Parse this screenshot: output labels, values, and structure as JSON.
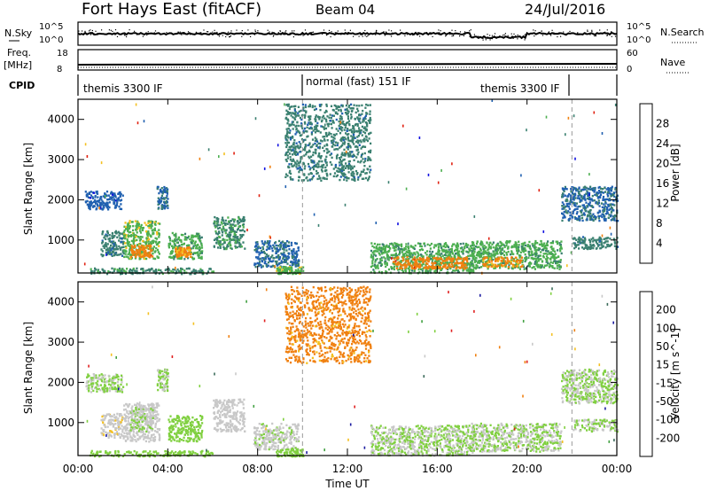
{
  "header": {
    "title": "Fort Hays East (fitACF)",
    "beam": "Beam 04",
    "date": "24/Jul/2016"
  },
  "noise_panel": {
    "left_label": "N.Sky",
    "right_label": "N.Search",
    "left_ticks": [
      "10^5",
      "10^0"
    ],
    "right_ticks": [
      "10^5",
      "10^0"
    ]
  },
  "freq_panel": {
    "left_label_top": "Freq.",
    "left_label_bottom": "[MHz]",
    "right_label": "Nave",
    "left_ticks": [
      "18",
      "8"
    ],
    "right_ticks": [
      "60",
      "0"
    ]
  },
  "cpid_panel": {
    "label": "CPID",
    "segments": [
      {
        "name": "themis 3300 IF",
        "start_hour": 0.0,
        "end_hour": 10.0
      },
      {
        "name": "normal (fast) 151 IF",
        "start_hour": 10.0,
        "end_hour": 22.0
      },
      {
        "name": "themis 3300 IF",
        "start_hour": 10.0,
        "end_hour": 22.0
      }
    ]
  },
  "x_axis": {
    "label": "Time UT",
    "ticks": [
      "00:00",
      "04:00",
      "08:00",
      "12:00",
      "16:00",
      "20:00",
      "00:00"
    ],
    "range_hours": [
      0,
      24
    ],
    "mode_boundaries_hours": [
      10.0,
      22.0
    ]
  },
  "chart_data": [
    {
      "type": "heatmap",
      "name": "power-panel",
      "ylabel": "Slant Range [km]",
      "yticks": [
        "1000",
        "2000",
        "3000",
        "4000"
      ],
      "ylim": [
        180,
        4500
      ],
      "colorbar": {
        "label": "Power [dB]",
        "ticks": [
          "4",
          "8",
          "12",
          "16",
          "20",
          "24",
          "28"
        ],
        "range": [
          0,
          30
        ],
        "colors": [
          "#1010e0",
          "#2060b0",
          "#3a8070",
          "#4caf50",
          "#f4c020",
          "#f08010",
          "#e02010"
        ]
      },
      "clusters": [
        {
          "t0": 0.3,
          "t1": 2.0,
          "r0": 1780,
          "r1": 2230,
          "value": 6
        },
        {
          "t0": 1.0,
          "t1": 2.0,
          "r0": 620,
          "r1": 1250,
          "value": 10
        },
        {
          "t0": 2.0,
          "t1": 3.6,
          "r0": 550,
          "r1": 1500,
          "value": 16
        },
        {
          "t0": 2.3,
          "t1": 3.3,
          "r0": 600,
          "r1": 900,
          "value": 24
        },
        {
          "t0": 3.5,
          "t1": 4.0,
          "r0": 1800,
          "r1": 2350,
          "value": 8
        },
        {
          "t0": 4.0,
          "t1": 5.5,
          "r0": 550,
          "r1": 1200,
          "value": 14
        },
        {
          "t0": 4.3,
          "t1": 5.0,
          "r0": 600,
          "r1": 850,
          "value": 22
        },
        {
          "t0": 6.0,
          "t1": 7.4,
          "r0": 800,
          "r1": 1600,
          "value": 12
        },
        {
          "t0": 0.5,
          "t1": 6.0,
          "r0": 180,
          "r1": 320,
          "value": 12
        },
        {
          "t0": 7.8,
          "t1": 9.8,
          "r0": 350,
          "r1": 1000,
          "value": 8
        },
        {
          "t0": 8.8,
          "t1": 10.0,
          "r0": 180,
          "r1": 360,
          "value": 16
        },
        {
          "t0": 9.2,
          "t1": 13.0,
          "r0": 2500,
          "r1": 4400,
          "value": 10
        },
        {
          "t0": 13.0,
          "t1": 17.6,
          "r0": 200,
          "r1": 950,
          "value": 14
        },
        {
          "t0": 14.0,
          "t1": 17.3,
          "r0": 300,
          "r1": 600,
          "value": 24
        },
        {
          "t0": 17.5,
          "t1": 21.5,
          "r0": 300,
          "r1": 1000,
          "value": 14
        },
        {
          "t0": 18.0,
          "t1": 19.8,
          "r0": 350,
          "r1": 600,
          "value": 22
        },
        {
          "t0": 21.5,
          "t1": 24.0,
          "r0": 1500,
          "r1": 2350,
          "value": 8
        },
        {
          "t0": 22.0,
          "t1": 24.0,
          "r0": 800,
          "r1": 1100,
          "value": 10
        }
      ]
    },
    {
      "type": "heatmap",
      "name": "velocity-panel",
      "ylabel": "Slant Range [km]",
      "yticks": [
        "1000",
        "2000",
        "3000",
        "4000"
      ],
      "ylim": [
        180,
        4500
      ],
      "colorbar": {
        "label": "Velocity [m s^-1]",
        "ticks": [
          "200",
          "100",
          "50",
          "15",
          "-15",
          "-50",
          "-100",
          "-200"
        ],
        "range": [
          -250,
          250
        ],
        "colors": [
          "#1a1aa0",
          "#3a6a5a",
          "#40a040",
          "#80d040",
          "#c8c8c8",
          "#f4c020",
          "#f08010",
          "#e02020"
        ]
      },
      "clusters": [
        {
          "t0": 0.3,
          "t1": 2.0,
          "r0": 1780,
          "r1": 2230,
          "value": 0
        },
        {
          "t0": 1.0,
          "t1": 2.0,
          "r0": 620,
          "r1": 1250,
          "value": 40
        },
        {
          "t0": 2.0,
          "t1": 3.6,
          "r0": 550,
          "r1": 1500,
          "value": 30
        },
        {
          "t0": 2.3,
          "t1": 3.3,
          "r0": 800,
          "r1": 1400,
          "value": 0
        },
        {
          "t0": 3.5,
          "t1": 4.0,
          "r0": 1800,
          "r1": 2350,
          "value": 0
        },
        {
          "t0": 4.0,
          "t1": 5.5,
          "r0": 550,
          "r1": 1200,
          "value": -30
        },
        {
          "t0": 6.0,
          "t1": 7.4,
          "r0": 800,
          "r1": 1600,
          "value": 30
        },
        {
          "t0": 0.5,
          "t1": 6.0,
          "r0": 180,
          "r1": 320,
          "value": -30
        },
        {
          "t0": 7.8,
          "t1": 9.8,
          "r0": 350,
          "r1": 1000,
          "value": 20
        },
        {
          "t0": 8.8,
          "t1": 10.0,
          "r0": 180,
          "r1": 360,
          "value": -30
        },
        {
          "t0": 9.2,
          "t1": 13.0,
          "r0": 2500,
          "r1": 4400,
          "value": 150
        },
        {
          "t0": 13.0,
          "t1": 17.6,
          "r0": 200,
          "r1": 950,
          "value": 0
        },
        {
          "t0": 17.5,
          "t1": 21.5,
          "r0": 300,
          "r1": 1000,
          "value": 0
        },
        {
          "t0": 21.5,
          "t1": 24.0,
          "r0": 1500,
          "r1": 2350,
          "value": 0
        },
        {
          "t0": 22.0,
          "t1": 24.0,
          "r0": 800,
          "r1": 1100,
          "value": 0
        }
      ]
    }
  ]
}
